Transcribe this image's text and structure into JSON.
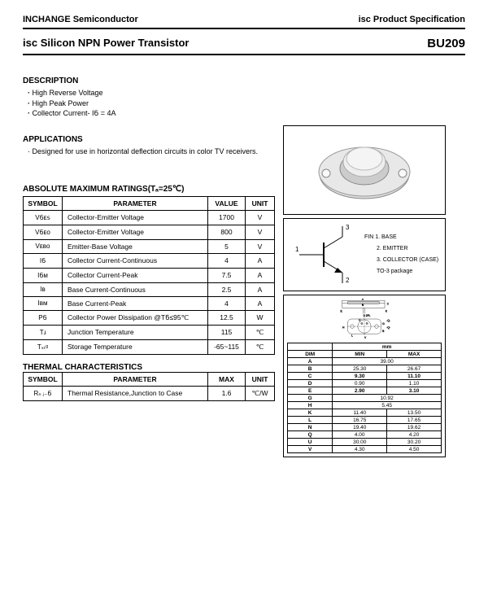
{
  "header": {
    "company": "INCHANGE Semiconductor",
    "spec": "isc Product Specification"
  },
  "title": {
    "prefix": "isc",
    "main": "Silicon NPN Power Transistor",
    "part": "BU209"
  },
  "description": {
    "heading": "DESCRIPTION",
    "items": [
      "High Reverse Voltage",
      "High Peak Power",
      "Collector Current- IᲜ = 4A"
    ]
  },
  "applications": {
    "heading": "APPLICATIONS",
    "text": "Designed for use in horizontal deflection circuits in color TV receivers."
  },
  "amr": {
    "heading": "ABSOLUTE MAXIMUM RATINGS(Tₐ=25℃)",
    "cols": [
      "SYMBOL",
      "PARAMETER",
      "VALUE",
      "UNIT"
    ],
    "rows": [
      {
        "sym": "VᲜᴇꜱ",
        "param": "Collector-Emitter Voltage",
        "value": "1700",
        "unit": "V"
      },
      {
        "sym": "VᲜᴇᴏ",
        "param": "Collector-Emitter Voltage",
        "value": "800",
        "unit": "V"
      },
      {
        "sym": "Vᴇʙᴏ",
        "param": "Emitter-Base Voltage",
        "value": "5",
        "unit": "V"
      },
      {
        "sym": "IᲜ",
        "param": "Collector Current-Continuous",
        "value": "4",
        "unit": "A"
      },
      {
        "sym": "IᲜᴍ",
        "param": "Collector Current-Peak",
        "value": "7.5",
        "unit": "A"
      },
      {
        "sym": "Iʙ",
        "param": "Base Current-Continuous",
        "value": "2.5",
        "unit": "A"
      },
      {
        "sym": "Iʙᴍ",
        "param": "Base Current-Peak",
        "value": "4",
        "unit": "A"
      },
      {
        "sym": "PᲜ",
        "param": "Collector Power Dissipation @TᲜ≤95℃",
        "value": "12.5",
        "unit": "W"
      },
      {
        "sym": "Tɹ",
        "param": "Junction Temperature",
        "value": "115",
        "unit": "℃"
      },
      {
        "sym": "Tₛₜᵍ",
        "param": "Storage Temperature",
        "value": "-65~115",
        "unit": "℃"
      }
    ]
  },
  "thermal": {
    "heading": "THERMAL CHARACTERISTICS",
    "cols": [
      "SYMBOL",
      "PARAMETER",
      "MAX",
      "UNIT"
    ],
    "rows": [
      {
        "sym": "Rₙ ⱼ₋Ნ",
        "param": "Thermal Resistance,Junction to Case",
        "value": "1.6",
        "unit": "℃/W"
      }
    ]
  },
  "pins": {
    "labels": [
      "FIN 1. BASE",
      "2. EMITTER",
      "3. COLLECTOR (CASE)",
      "TO-3 package"
    ],
    "nums": [
      "1",
      "2",
      "3"
    ]
  },
  "dims": {
    "header": [
      "DIM",
      "MIN",
      "MAX"
    ],
    "rows": [
      [
        "A",
        "39.00",
        ""
      ],
      [
        "B",
        "25.30",
        "26.67"
      ],
      [
        "C",
        "9.30",
        "11.10"
      ],
      [
        "D",
        "0.90",
        "1.10"
      ],
      [
        "E",
        "2.90",
        "3.10"
      ],
      [
        "G",
        "10.92",
        ""
      ],
      [
        "H",
        "5.45",
        ""
      ],
      [
        "K",
        "11.40",
        "13.50"
      ],
      [
        "L",
        "16.75",
        "17.65"
      ],
      [
        "N",
        "19.40",
        "19.62"
      ],
      [
        "Q",
        "4.00",
        "4.20"
      ],
      [
        "U",
        "30.00",
        "30.20"
      ],
      [
        "V",
        "4.30",
        "4.50"
      ]
    ]
  },
  "labels": {
    "tomm": "mm",
    "dpl": "D 2PL",
    "a": "A",
    "n": "N",
    "c": "C",
    "e": "E",
    "k": "K",
    "u": "U",
    "l": "L",
    "h": "H",
    "g": "G",
    "b": "B",
    "q": "-Q-",
    "v": "V"
  }
}
